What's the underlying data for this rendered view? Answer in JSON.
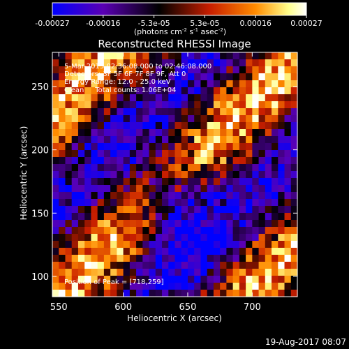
{
  "chart_data": {
    "type": "heatmap",
    "title": "Reconstructed RHESSI Image",
    "xlabel": "Heliocentric X (arcsec)",
    "ylabel": "Heliocentric Y (arcsec)",
    "xlim": [
      545,
      735
    ],
    "ylim": [
      84,
      277
    ],
    "x_ticks": [
      550,
      600,
      650,
      700
    ],
    "y_ticks": [
      100,
      150,
      200,
      250
    ],
    "colorbar": {
      "ticks": [
        "-0.00027",
        "-0.00016",
        "-5.3e-05",
        "5.3e-05",
        "0.00016",
        "0.00027"
      ],
      "range": [
        -0.00027,
        0.00027
      ],
      "unit_text": "(photons cm",
      "unit_sup1": "-2",
      "unit_mid": " s",
      "unit_sup2": "-1",
      "unit_mid2": " asec",
      "unit_sup3": "-2",
      "unit_end": ")"
    },
    "annotations": [
      "5-Mar-2015 02:36:08.000 to 02:46:08.000",
      "Detectors: 3F 5F 6F 7F 8F 9F, Att 0",
      "Energy Range: 12.0 - 25.0 keV",
      "Clean     Total counts: 1.06E+04"
    ],
    "peak_label": "Position of Peak = [718,259]",
    "peak": [
      718,
      259
    ],
    "colors": [
      "#0000ff",
      "#5a00b4",
      "#000000",
      "#c81e00",
      "#ff8c00",
      "#ffff8c",
      "#ffffff"
    ]
  },
  "footer": {
    "timestamp": "19-Aug-2017 08:07"
  }
}
